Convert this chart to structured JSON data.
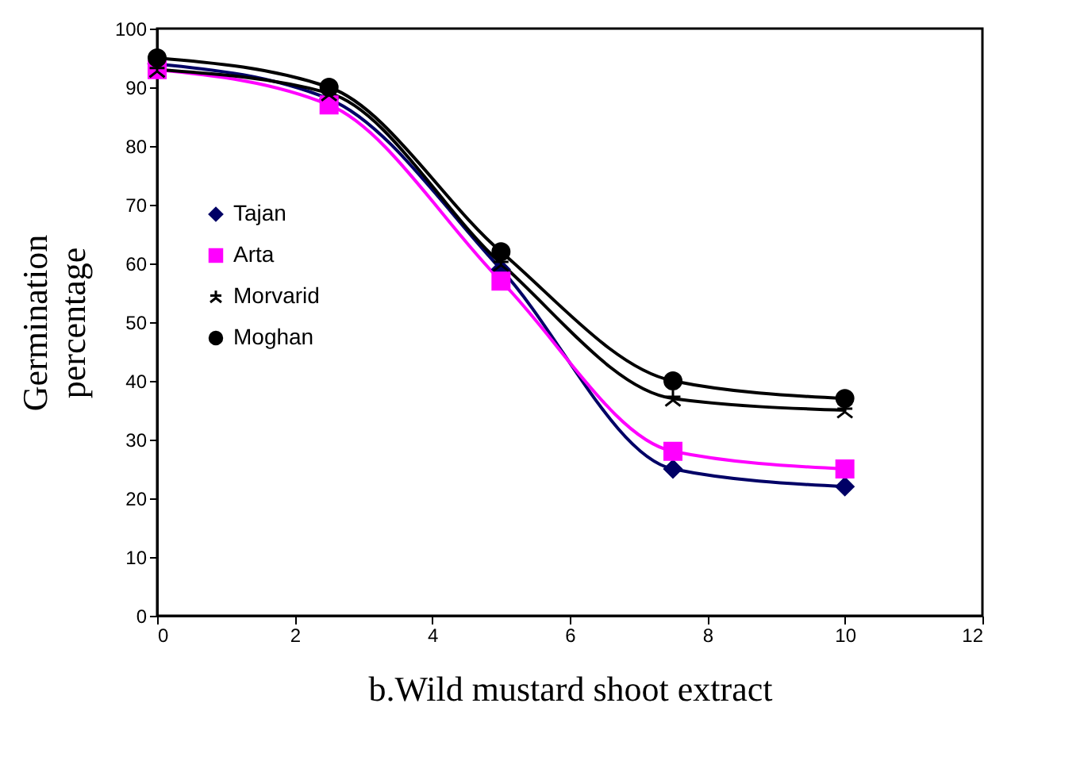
{
  "chart_data": {
    "type": "line",
    "xlabel": "b.Wild mustard shoot extract",
    "ylabel": "Germination percentage",
    "x": [
      0,
      2.5,
      5,
      7.5,
      10
    ],
    "xlim": [
      0,
      12
    ],
    "xticks": [
      0,
      2,
      4,
      6,
      8,
      10,
      12
    ],
    "ylim": [
      0,
      100
    ],
    "yticks": [
      0,
      10,
      20,
      30,
      40,
      50,
      60,
      70,
      80,
      90,
      100
    ],
    "grid": false,
    "legend": "left",
    "series": [
      {
        "name": "Tajan",
        "color": "#000066",
        "marker": "diamond",
        "values": [
          94,
          88,
          59,
          25,
          22
        ]
      },
      {
        "name": "Arta",
        "color": "#ff00ff",
        "marker": "square",
        "values": [
          93,
          87,
          57,
          28,
          25
        ]
      },
      {
        "name": "Morvarid",
        "color": "#000000",
        "marker": "cross",
        "values": [
          93,
          89,
          60,
          37,
          35
        ]
      },
      {
        "name": "Moghan",
        "color": "#000000",
        "marker": "circle",
        "values": [
          95,
          90,
          62,
          40,
          37
        ]
      }
    ]
  }
}
